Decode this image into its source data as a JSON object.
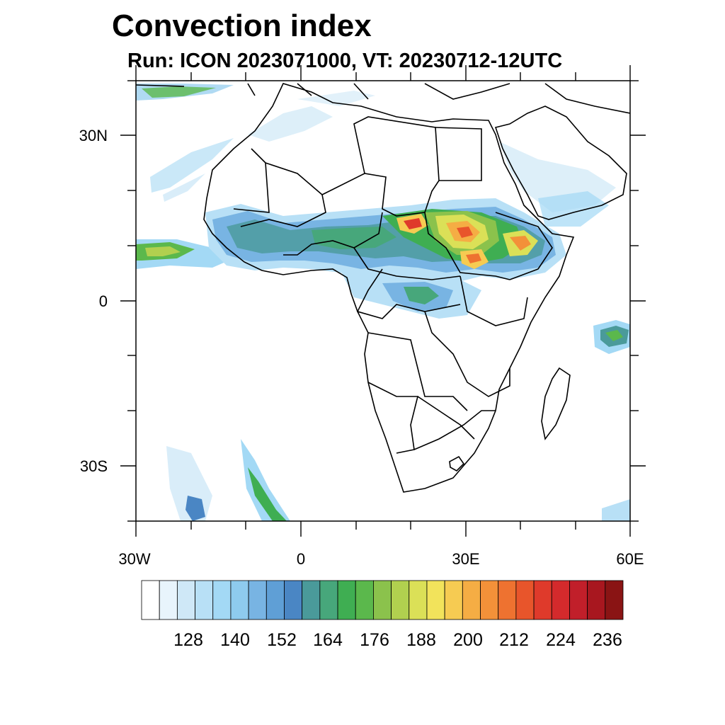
{
  "title": "Convection index",
  "subtitle": "Run: ICON 2023071000,  VT: 20230712-12UTC",
  "axes": {
    "lat_labels": [
      "30N",
      "0",
      "30S"
    ],
    "lon_labels": [
      "30W",
      "0",
      "30E",
      "60E"
    ]
  },
  "colorbar": {
    "colors": [
      "#ffffff",
      "#e8f4fc",
      "#cfe8f7",
      "#b8e0f6",
      "#a3d9f5",
      "#8ecbee",
      "#78b4e3",
      "#5f9fd6",
      "#4a86c4",
      "#4a9a9a",
      "#47a77b",
      "#3fae52",
      "#5bb84c",
      "#8bc24c",
      "#b1d04f",
      "#dbe057",
      "#f2e35b",
      "#f6cb52",
      "#f5ad44",
      "#f39139",
      "#ee7230",
      "#e8552b",
      "#df3a2b",
      "#d42a2c",
      "#c11f2a",
      "#a8171f",
      "#8a1414"
    ],
    "tick_labels": [
      "128",
      "140",
      "152",
      "164",
      "176",
      "188",
      "200",
      "212",
      "224",
      "236"
    ]
  }
}
